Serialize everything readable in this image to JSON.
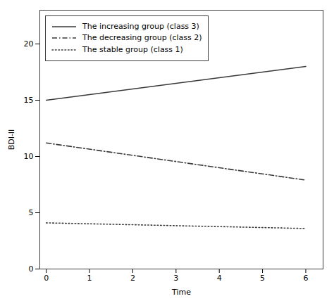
{
  "chart_data": {
    "type": "line",
    "xlabel": "Time",
    "ylabel": "BDI-II",
    "x": [
      0,
      6
    ],
    "series": [
      {
        "name": "The increasing group (class 3)",
        "color": "#3a3a3a",
        "line_style": "solid",
        "values": [
          15.0,
          18.0
        ]
      },
      {
        "name": "The decreasing group (class 2)",
        "color": "#3a3a3a",
        "line_style": "dashdot",
        "values": [
          11.2,
          7.9
        ]
      },
      {
        "name": "The stable group (class 1)",
        "color": "#3a3a3a",
        "line_style": "dotted",
        "values": [
          4.1,
          3.6
        ]
      }
    ],
    "xlim": [
      -0.15,
      6.4
    ],
    "ylim": [
      0,
      23
    ],
    "xticks": [
      0,
      1,
      2,
      3,
      4,
      5,
      6
    ],
    "yticks": [
      0,
      5,
      10,
      15,
      20
    ],
    "legend": "upper left",
    "grid": false
  }
}
